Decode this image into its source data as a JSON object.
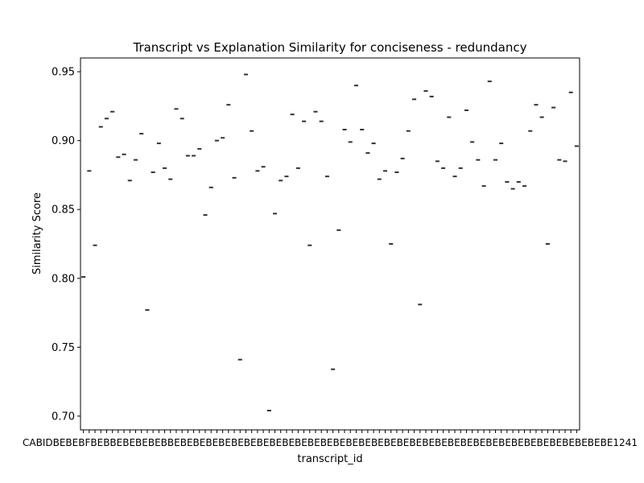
{
  "chart_data": {
    "type": "box",
    "title": "Transcript vs Explanation Similarity for conciseness - redundancy",
    "xlabel": "transcript_id",
    "ylabel": "Similarity Score",
    "ylim": [
      0.69,
      0.96
    ],
    "yticks": [
      "0.70",
      "0.75",
      "0.80",
      "0.85",
      "0.90",
      "0.95"
    ],
    "grid": false,
    "legend": "none",
    "colors": {
      "box": "#333333",
      "axis": "#000000"
    },
    "tick_label_text": "CABIDBEBEBFBEBBEBEBEBEBBEBEBEBEBEBEBEBEBEBEBEBEBEBEBEBEBEBEBEBEBEBEBEBEBEBEBEBEBEBEBEBEBEBEBE1241",
    "values": [
      0.801,
      0.878,
      0.824,
      0.91,
      0.916,
      0.921,
      0.888,
      0.89,
      0.871,
      0.886,
      0.905,
      0.777,
      0.877,
      0.898,
      0.88,
      0.872,
      0.923,
      0.916,
      0.889,
      0.889,
      0.894,
      0.846,
      0.866,
      0.9,
      0.902,
      0.926,
      0.873,
      0.741,
      0.948,
      0.907,
      0.878,
      0.881,
      0.704,
      0.847,
      0.871,
      0.874,
      0.919,
      0.88,
      0.914,
      0.824,
      0.921,
      0.914,
      0.874,
      0.734,
      0.835,
      0.908,
      0.899,
      0.94,
      0.908,
      0.891,
      0.898,
      0.872,
      0.878,
      0.825,
      0.877,
      0.887,
      0.907,
      0.93,
      0.781,
      0.936,
      0.932,
      0.885,
      0.88,
      0.917,
      0.874,
      0.88,
      0.922,
      0.899,
      0.886,
      0.867,
      0.943,
      0.886,
      0.898,
      0.87,
      0.865,
      0.87,
      0.867,
      0.907,
      0.926,
      0.917,
      0.825,
      0.924,
      0.886,
      0.885,
      0.935,
      0.896
    ]
  }
}
